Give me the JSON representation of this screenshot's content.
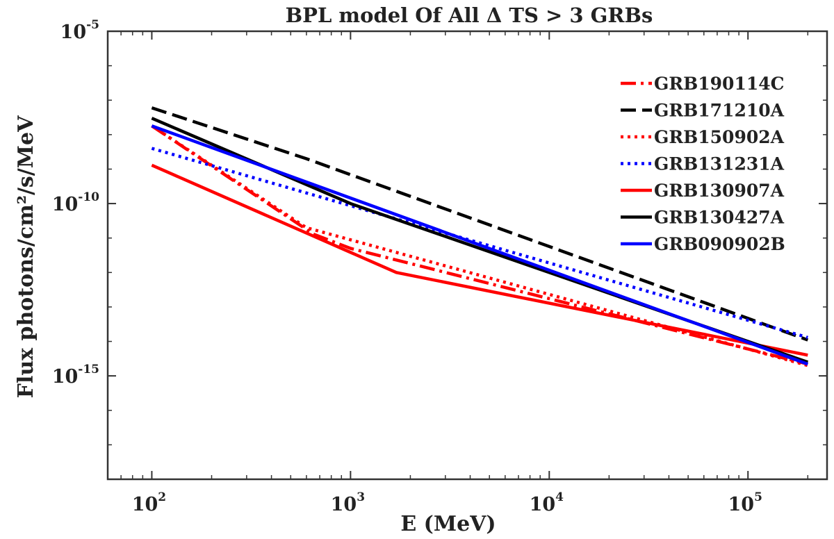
{
  "chart_data": {
    "type": "line",
    "title": "BPL model Of All Δ TS > 3 GRBs",
    "xlabel": "E (MeV)",
    "ylabel": "Flux photons/cm²/s/MeV",
    "xscale": "log",
    "yscale": "log",
    "xlim": [
      60,
      250000
    ],
    "ylim": [
      1e-18,
      1e-05
    ],
    "x_ticks": [
      {
        "value": 100,
        "base": "10",
        "exp": "2"
      },
      {
        "value": 1000,
        "base": "10",
        "exp": "3"
      },
      {
        "value": 10000,
        "base": "10",
        "exp": "4"
      },
      {
        "value": 100000,
        "base": "10",
        "exp": "5"
      }
    ],
    "y_ticks": [
      {
        "value": 1e-05,
        "base": "10",
        "exp": "-5"
      },
      {
        "value": 1e-10,
        "base": "10",
        "exp": "-10"
      },
      {
        "value": 1e-15,
        "base": "10",
        "exp": "-15"
      }
    ],
    "legend_position": "top-right",
    "series": [
      {
        "name": "GRB190114C",
        "color": "#ff0000",
        "dash": "dashdot",
        "x": [
          100,
          650,
          1000,
          200000
        ],
        "y": [
          1.8e-08,
          1.3e-11,
          5e-12,
          2.2e-15
        ]
      },
      {
        "name": "GRB171210A",
        "color": "#000000",
        "dash": "dash",
        "x": [
          100,
          600,
          200000
        ],
        "y": [
          6e-08,
          2e-09,
          1.1e-14
        ]
      },
      {
        "name": "GRB150902A",
        "color": "#ff0000",
        "dash": "dot",
        "x": [
          100,
          600,
          200000
        ],
        "y": [
          1.8e-08,
          2e-11,
          2e-15
        ]
      },
      {
        "name": "GRB131231A",
        "color": "#0000ff",
        "dash": "dot",
        "x": [
          100,
          200000
        ],
        "y": [
          4e-09,
          1.3e-14
        ]
      },
      {
        "name": "GRB130907A",
        "color": "#ff0000",
        "dash": "solid",
        "x": [
          100,
          1700,
          200000
        ],
        "y": [
          1.3e-09,
          1e-12,
          4e-15
        ]
      },
      {
        "name": "GRB130427A",
        "color": "#000000",
        "dash": "solid",
        "x": [
          100,
          1000,
          200000
        ],
        "y": [
          3e-08,
          1e-10,
          2.5e-15
        ]
      },
      {
        "name": "GRB090902B",
        "color": "#0000ff",
        "dash": "solid",
        "x": [
          100,
          200000
        ],
        "y": [
          1.8e-08,
          2.2e-15
        ]
      }
    ]
  }
}
